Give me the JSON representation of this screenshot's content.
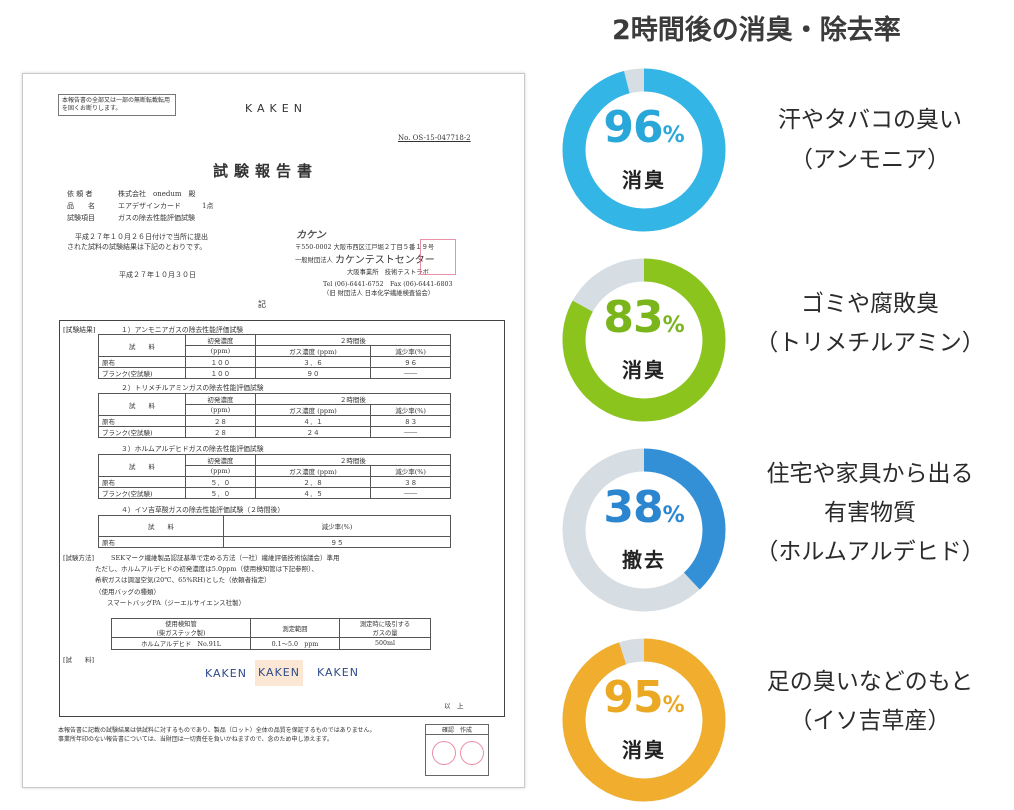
{
  "header": {
    "title": "2時間後の消臭・除去率"
  },
  "rings": [
    {
      "value": 96,
      "percent_sign": "%",
      "label": "消臭",
      "desc": [
        "汗やタバコの臭い",
        "（アンモニア）"
      ],
      "color": "#33b5e5",
      "text_color": "#2aa7d9"
    },
    {
      "value": 83,
      "percent_sign": "%",
      "label": "消臭",
      "desc": [
        "ゴミや腐敗臭",
        "（トリメチルアミン）"
      ],
      "color": "#8cc41e",
      "text_color": "#7ab51c"
    },
    {
      "value": 38,
      "percent_sign": "%",
      "label": "撤去",
      "desc": [
        "住宅や家具から出る",
        "有害物質",
        "（ホルムアルデヒド）"
      ],
      "color": "#3490d6",
      "text_color": "#2b86cf"
    },
    {
      "value": 95,
      "percent_sign": "%",
      "label": "消臭",
      "desc": [
        "足の臭いなどのもと",
        "（イソ吉草産）"
      ],
      "color": "#f0ad2e",
      "text_color": "#eba823"
    }
  ],
  "track_color": "#d6dde3",
  "report": {
    "notice": "本報告書の全部又は一部の無断転載転用を固くお断りします。",
    "brand": "KAKEN",
    "doc_no": "No. OS-15-047718-2",
    "title": "試験報告書",
    "requester_label": "依 頼 者",
    "requester": "株式会社　onedum　殿",
    "product_label": "品　　名",
    "product": "エアデザインカード　　　1点",
    "item_label": "試験項目",
    "item": "ガスの除去性能評価試験",
    "intro_1": "平成２７年１０月２６日付けで当所に提出",
    "intro_2": "された試料の試験結果は下記のとおりです。",
    "date": "平成２７年１０月３０日",
    "issuer_logo": "カケン",
    "issuer_address": "〒550-0002 大阪市西区江戸堀２丁目５番１９号",
    "issuer_org": "一般財団法人",
    "issuer_center": "カケンテストセンター",
    "issuer_office": "大阪事業所　技術テストラボ",
    "issuer_tel": "Tel (06)-6441-6752　Fax (06)-6441-6803",
    "issuer_former": "（旧 財団法人 日本化学繊維検査協会）",
    "ki": "記",
    "results_label": "[試験結果]",
    "section_1": "１）アンモニアガスの除去性能評価試験",
    "section_2": "２）トリメチルアミンガスの除去性能評価試験",
    "section_3": "３）ホルムアルデヒドガスの除去性能評価試験",
    "section_4": "４）イソ吉草酸ガスの除去性能評価試験（２時間後）",
    "col_sample": "試　　料",
    "col_initial": "初発濃度",
    "col_ppm": "(ppm)",
    "col_2h": "２時間後",
    "col_gas": "ガス濃度 (ppm)",
    "col_reduction": "減少率(%)",
    "col_reduction_only": "減少率(%)",
    "row_cloth": "原布",
    "row_blank": "ブランク(空試験)",
    "t1": {
      "cloth": [
        "１００",
        "３．６",
        "９６"
      ],
      "blank": [
        "１００",
        "９０",
        "――"
      ]
    },
    "t2": {
      "cloth": [
        "２８",
        "４．１",
        "８３"
      ],
      "blank": [
        "２８",
        "２４",
        "――"
      ]
    },
    "t3": {
      "cloth": [
        "５．０",
        "２．８",
        "３８"
      ],
      "blank": [
        "５．０",
        "４．５",
        "――"
      ]
    },
    "t4": {
      "cloth": "９５"
    },
    "method_label": "[試験方法]",
    "method_1": "SEKマーク繊維製品認証基準で定める方法（一社）繊維評価技術協議会）準用",
    "method_2": "ただし、ホルムアルデヒドの初発濃度は5.0ppm（使用検知管は下記参照）、",
    "method_3": "希釈ガスは調湿空気(20℃、65%RH)とした（依頼者指定）",
    "method_4": "（使用バッグの種類）",
    "method_5": "スマートバッグPA（ジーエルサイエンス社製）",
    "tube_h1": "使用検知管",
    "tube_h1b": "(柴ガステック製)",
    "tube_h2": "測定範囲",
    "tube_h3": "測定時に吸引する",
    "tube_h3b": "ガスの量",
    "tube_name": "ホルムアルデヒド　No.91L",
    "tube_range": "0.1～5.0　ppm",
    "tube_volume": "500ml",
    "sample_label": "[試　　料]",
    "sample_tags": [
      "KAKEN",
      "KAKEN",
      "KAKEN"
    ],
    "ijo": "以　上",
    "footer_1": "本報告書に記載の試験結果は供試料に対するものであり、製品（ロット）全体の品質を保証するものではありません。",
    "footer_2": "事業所年印のない報告書については、当財団は一切責任を負いかねますので、念のため申し添えます。",
    "sign_header": "確認　作成"
  }
}
